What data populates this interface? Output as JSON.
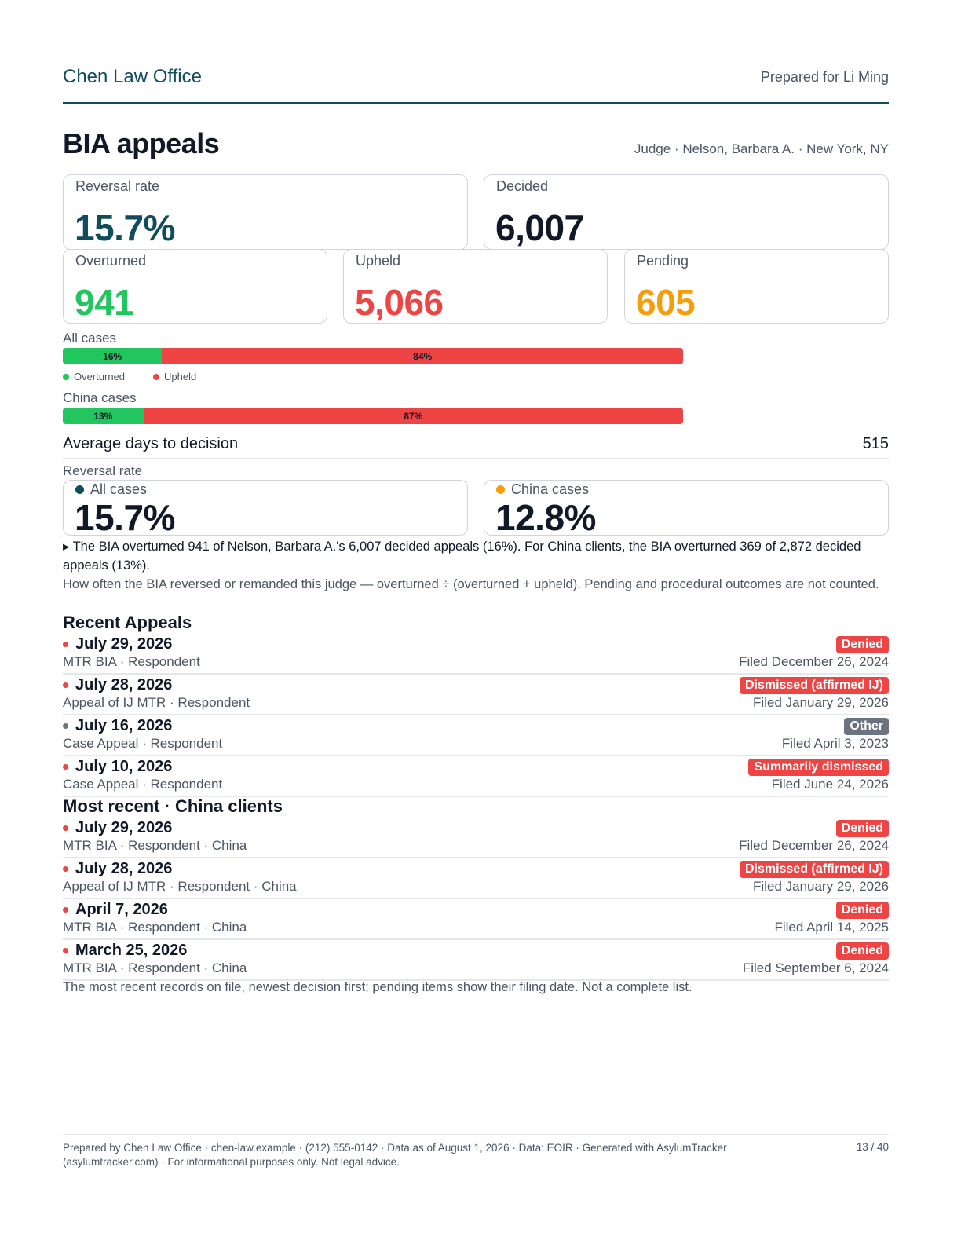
{
  "header": {
    "brand": "Chen Law Office",
    "prepared_for": "Prepared for Li Ming"
  },
  "title": "BIA appeals",
  "subtitle": "Judge · Nelson, Barbara A. · New York, NY",
  "stats": {
    "reversal_rate": {
      "label": "Reversal rate",
      "value": "15.7%",
      "color": "#0f4c5c"
    },
    "decided": {
      "label": "Decided",
      "value": "6,007",
      "color": "#111827"
    },
    "overturned": {
      "label": "Overturned",
      "value": "941",
      "color": "#22c55e"
    },
    "upheld": {
      "label": "Upheld",
      "value": "5,066",
      "color": "#ef4444"
    },
    "pending": {
      "label": "Pending",
      "value": "605",
      "color": "#f59e0b"
    }
  },
  "bars": {
    "all": {
      "label": "All cases",
      "overturned_pct": 16,
      "upheld_pct": 84,
      "overturned_text": "16%",
      "upheld_text": "84%"
    },
    "china": {
      "label": "China cases",
      "overturned_pct": 13,
      "upheld_pct": 87,
      "overturned_text": "13%",
      "upheld_text": "87%"
    },
    "legend": {
      "overturned": "Overturned",
      "upheld": "Upheld"
    }
  },
  "avg_days": {
    "label": "Average days to decision",
    "value": "515"
  },
  "reversal": {
    "label": "Reversal rate",
    "all": {
      "label": "All cases",
      "value": "15.7%",
      "dot_color": "#0f4c5c"
    },
    "china": {
      "label": "China cases",
      "value": "12.8%",
      "dot_color": "#f59e0b"
    }
  },
  "summary": "▸ The BIA overturned 941 of Nelson, Barbara A.'s 6,007 decided appeals (16%). For China clients, the BIA overturned 369 of 2,872 decided appeals (13%).",
  "note": "How often the BIA reversed or remanded this judge — overturned ÷ (overturned + upheld). Pending and procedural outcomes are not counted.",
  "recent": {
    "heading": "Recent Appeals",
    "rows": [
      {
        "date": "July 29, 2026",
        "meta": "MTR BIA · Respondent",
        "badge": "Denied",
        "filed": "Filed December 26, 2024"
      },
      {
        "date": "July 28, 2026",
        "meta": "Appeal of IJ MTR · Respondent",
        "badge": "Dismissed (affirmed IJ)",
        "filed": "Filed January 29, 2026"
      },
      {
        "date": "July 16, 2026",
        "meta": "Case Appeal · Respondent",
        "badge": "Other",
        "filed": "Filed April 3, 2023"
      },
      {
        "date": "July 10, 2026",
        "meta": "Case Appeal · Respondent",
        "badge": "Summarily dismissed",
        "filed": "Filed June 24, 2026"
      }
    ]
  },
  "china": {
    "heading": "Most recent · China clients",
    "rows": [
      {
        "date": "July 29, 2026",
        "meta": "MTR BIA · Respondent · China",
        "badge": "Denied",
        "filed": "Filed December 26, 2024"
      },
      {
        "date": "July 28, 2026",
        "meta": "Appeal of IJ MTR · Respondent · China",
        "badge": "Dismissed (affirmed IJ)",
        "filed": "Filed January 29, 2026"
      },
      {
        "date": "April 7, 2026",
        "meta": "MTR BIA · Respondent · China",
        "badge": "Denied",
        "filed": "Filed April 14, 2025"
      },
      {
        "date": "March 25, 2026",
        "meta": "MTR BIA · Respondent · China",
        "badge": "Denied",
        "filed": "Filed September 6, 2024"
      }
    ]
  },
  "list_note": "The most recent records on file, newest decision first; pending items show their filing date. Not a complete list.",
  "footer": {
    "text": "Prepared by Chen Law Office · chen-law.example · (212) 555-0142 · Data as of August 1, 2026 · Data: EOIR · Generated with AsylumTracker (asylumtracker.com) · For informational purposes only. Not legal advice.",
    "page": "13 / 40"
  },
  "colors": {
    "red": "#ef4444",
    "gray": "#6b7280",
    "green": "#22c55e"
  }
}
